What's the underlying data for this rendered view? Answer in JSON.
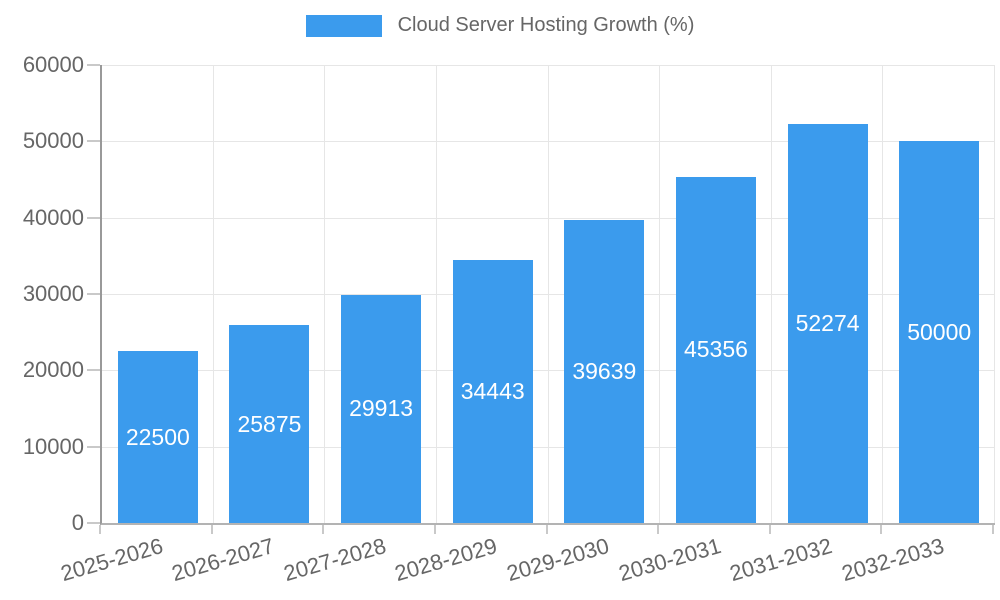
{
  "legend": {
    "label": "Cloud Server Hosting Growth (%)"
  },
  "chart_data": {
    "type": "bar",
    "title": "Cloud Server Hosting Growth (%)",
    "series_name": "Cloud Server Hosting Growth (%)",
    "categories": [
      "2025-2026",
      "2026-2027",
      "2027-2028",
      "2028-2029",
      "2029-2030",
      "2030-2031",
      "2031-2032",
      "2032-2033"
    ],
    "values": [
      22500,
      25875,
      29913,
      34443,
      39639,
      45356,
      52274,
      50000
    ],
    "xlabel": "",
    "ylabel": "",
    "ylim": [
      0,
      60000
    ],
    "yticks": [
      0,
      10000,
      20000,
      30000,
      40000,
      50000,
      60000
    ],
    "grid": "on",
    "legend_position": "top",
    "value_labels": "centered inside bars",
    "colors": {
      "bar": "#3B9BED",
      "grid": "#E6E6E6",
      "axis_y_line": "#999999",
      "axis_x_line": "#B3B3B3",
      "tick": "#C9C9C9",
      "axis_text": "#666666",
      "value_text": "#FFFFFF"
    }
  }
}
